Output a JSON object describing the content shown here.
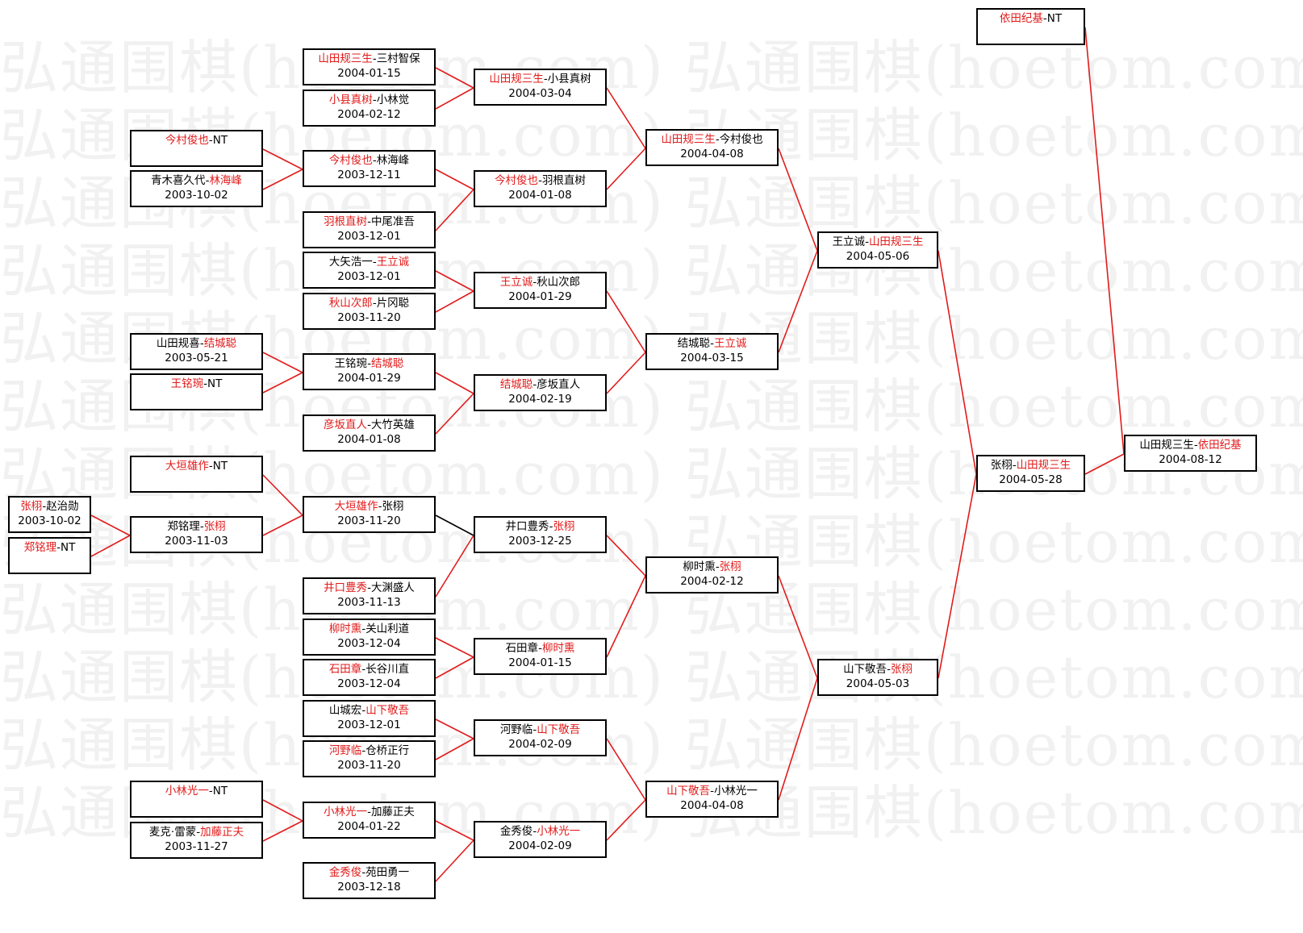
{
  "watermark": "弘通围棋(hoetom.com) 弘通围棋(hoetom.com) 弘通围棋(",
  "separator": "-",
  "colors": {
    "winner": "#e21b1b",
    "line": "#e21b1b",
    "loser_line": "#000000",
    "border": "#000000"
  },
  "matches": [
    {
      "left": "山田规三生",
      "right": "三村智保",
      "winner": "left",
      "date": "2004-01-15"
    },
    {
      "left": "小县真树",
      "right": "小林觉",
      "winner": "left",
      "date": "2004-02-12"
    },
    {
      "left": "今村俊也",
      "right": "林海峰",
      "winner": "left",
      "date": "2003-12-11"
    },
    {
      "left": "羽根直树",
      "right": "中尾准吾",
      "winner": "left",
      "date": "2003-12-01"
    },
    {
      "left": "大矢浩一",
      "right": "王立诚",
      "winner": "right",
      "date": "2003-12-01"
    },
    {
      "left": "秋山次郎",
      "right": "片冈聪",
      "winner": "left",
      "date": "2003-11-20"
    },
    {
      "left": "王铭琬",
      "right": "结城聪",
      "winner": "right",
      "date": "2004-01-29"
    },
    {
      "left": "彦坂直人",
      "right": "大竹英雄",
      "winner": "left",
      "date": "2004-01-08"
    },
    {
      "left": "大垣雄作",
      "right": "张栩",
      "winner": "left",
      "date": "2003-11-20"
    },
    {
      "left": "井口豊秀",
      "right": "大渊盛人",
      "winner": "left",
      "date": "2003-11-13"
    },
    {
      "left": "柳时熏",
      "right": "关山利道",
      "winner": "left",
      "date": "2003-12-04"
    },
    {
      "left": "石田章",
      "right": "长谷川直",
      "winner": "left",
      "date": "2003-12-04"
    },
    {
      "left": "山城宏",
      "right": "山下敬吾",
      "winner": "right",
      "date": "2003-12-01"
    },
    {
      "left": "河野临",
      "right": "仓桥正行",
      "winner": "left",
      "date": "2003-11-20"
    },
    {
      "left": "小林光一",
      "right": "加藤正夫",
      "winner": "left",
      "date": "2004-01-22"
    },
    {
      "left": "金秀俊",
      "right": "苑田勇一",
      "winner": "left",
      "date": "2003-12-18"
    },
    {
      "left": "今村俊也",
      "right": "NT",
      "winner": "left",
      "date": ""
    },
    {
      "left": "青木喜久代",
      "right": "林海峰",
      "winner": "right",
      "date": "2003-10-02"
    },
    {
      "left": "山田规喜",
      "right": "结城聪",
      "winner": "right",
      "date": "2003-05-21"
    },
    {
      "left": "王铭琬",
      "right": "NT",
      "winner": "left",
      "date": ""
    },
    {
      "left": "大垣雄作",
      "right": "NT",
      "winner": "left",
      "date": ""
    },
    {
      "left": "郑铭理",
      "right": "张栩",
      "winner": "right",
      "date": "2003-11-03"
    },
    {
      "left": "小林光一",
      "right": "NT",
      "winner": "left",
      "date": ""
    },
    {
      "left": "麦克·雷蒙",
      "right": "加藤正夫",
      "winner": "right",
      "date": "2003-11-27"
    },
    {
      "left": "张栩",
      "right": "赵治勋",
      "winner": "left",
      "date": "2003-10-02"
    },
    {
      "left": "郑铭理",
      "right": "NT",
      "winner": "left",
      "date": ""
    },
    {
      "left": "山田规三生",
      "right": "小县真树",
      "winner": "left",
      "date": "2004-03-04"
    },
    {
      "left": "今村俊也",
      "right": "羽根直树",
      "winner": "left",
      "date": "2004-01-08"
    },
    {
      "left": "王立诚",
      "right": "秋山次郎",
      "winner": "left",
      "date": "2004-01-29"
    },
    {
      "left": "结城聪",
      "right": "彦坂直人",
      "winner": "left",
      "date": "2004-02-19"
    },
    {
      "left": "井口豊秀",
      "right": "张栩",
      "winner": "right",
      "date": "2003-12-25"
    },
    {
      "left": "石田章",
      "right": "柳时熏",
      "winner": "right",
      "date": "2004-01-15"
    },
    {
      "left": "河野临",
      "right": "山下敬吾",
      "winner": "right",
      "date": "2004-02-09"
    },
    {
      "left": "金秀俊",
      "right": "小林光一",
      "winner": "right",
      "date": "2004-02-09"
    },
    {
      "left": "山田规三生",
      "right": "今村俊也",
      "winner": "left",
      "date": "2004-04-08"
    },
    {
      "left": "结城聪",
      "right": "王立诚",
      "winner": "right",
      "date": "2004-03-15"
    },
    {
      "left": "柳时熏",
      "right": "张栩",
      "winner": "right",
      "date": "2004-02-12"
    },
    {
      "left": "山下敬吾",
      "right": "小林光一",
      "winner": "left",
      "date": "2004-04-08"
    },
    {
      "left": "王立诚",
      "right": "山田规三生",
      "winner": "right",
      "date": "2004-05-06"
    },
    {
      "left": "山下敬吾",
      "right": "张栩",
      "winner": "right",
      "date": "2004-05-03"
    },
    {
      "left": "张栩",
      "right": "山田规三生",
      "winner": "right",
      "date": "2004-05-28"
    },
    {
      "left": "依田纪基",
      "right": "NT",
      "winner": "left",
      "date": ""
    },
    {
      "left": "山田规三生",
      "right": "依田纪基",
      "winner": "right",
      "date": "2004-08-12"
    }
  ],
  "edges": [
    {
      "from": 0,
      "to": 26
    },
    {
      "from": 1,
      "to": 26
    },
    {
      "from": 16,
      "to": 2
    },
    {
      "from": 17,
      "to": 2
    },
    {
      "from": 2,
      "to": 27
    },
    {
      "from": 3,
      "to": 27
    },
    {
      "from": 4,
      "to": 28
    },
    {
      "from": 5,
      "to": 28
    },
    {
      "from": 18,
      "to": 6
    },
    {
      "from": 19,
      "to": 6
    },
    {
      "from": 6,
      "to": 29
    },
    {
      "from": 7,
      "to": 29
    },
    {
      "from": 20,
      "to": 8
    },
    {
      "from": 21,
      "to": 8
    },
    {
      "from": 24,
      "to": 21
    },
    {
      "from": 25,
      "to": 21
    },
    {
      "from": 8,
      "to": 30,
      "loser": true
    },
    {
      "from": 9,
      "to": 30
    },
    {
      "from": 10,
      "to": 31
    },
    {
      "from": 11,
      "to": 31
    },
    {
      "from": 12,
      "to": 32
    },
    {
      "from": 13,
      "to": 32
    },
    {
      "from": 22,
      "to": 14
    },
    {
      "from": 23,
      "to": 14
    },
    {
      "from": 14,
      "to": 33
    },
    {
      "from": 15,
      "to": 33
    },
    {
      "from": 26,
      "to": 34
    },
    {
      "from": 27,
      "to": 34
    },
    {
      "from": 28,
      "to": 35
    },
    {
      "from": 29,
      "to": 35
    },
    {
      "from": 30,
      "to": 36
    },
    {
      "from": 31,
      "to": 36
    },
    {
      "from": 32,
      "to": 37
    },
    {
      "from": 33,
      "to": 37
    },
    {
      "from": 34,
      "to": 38
    },
    {
      "from": 35,
      "to": 38
    },
    {
      "from": 36,
      "to": 39
    },
    {
      "from": 37,
      "to": 39
    },
    {
      "from": 38,
      "to": 40
    },
    {
      "from": 39,
      "to": 40
    },
    {
      "from": 41,
      "to": 42
    },
    {
      "from": 40,
      "to": 42
    }
  ]
}
